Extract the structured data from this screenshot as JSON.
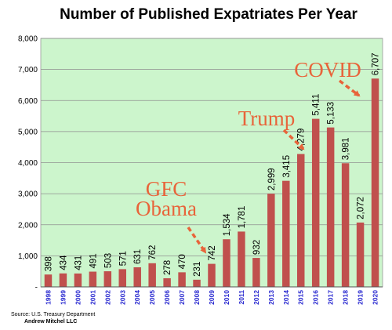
{
  "chart_data": {
    "type": "bar",
    "title": "Number of Published Expatriates Per Year",
    "categories": [
      "1998",
      "1999",
      "2000",
      "2001",
      "2002",
      "2003",
      "2004",
      "2005",
      "2006",
      "2007",
      "2008",
      "2009",
      "2010",
      "2011",
      "2012",
      "2013",
      "2014",
      "2015",
      "2016",
      "2017",
      "2018",
      "2019",
      "2020"
    ],
    "values": [
      398,
      434,
      431,
      491,
      503,
      571,
      631,
      762,
      278,
      470,
      231,
      742,
      1534,
      1781,
      932,
      2999,
      3415,
      4279,
      5411,
      5133,
      3981,
      2072,
      6707
    ],
    "value_labels": [
      "398",
      "434",
      "431",
      "491",
      "503",
      "571",
      "631",
      "762",
      "278",
      "470",
      "231",
      "742",
      "1,534",
      "1,781",
      "932",
      "2,999",
      "3,415",
      "4,279",
      "5,411",
      "5,133",
      "3,981",
      "2,072",
      "6,707"
    ],
    "yticks": [
      "-",
      "1,000",
      "2,000",
      "3,000",
      "4,000",
      "5,000",
      "6,000",
      "7,000",
      "8,000"
    ],
    "ylim": [
      0,
      8000
    ],
    "grid": true,
    "colors": {
      "bar": "#c0504d",
      "plot_bg": "#ccf5cc",
      "annotation": "#e8643a"
    },
    "annotations": [
      {
        "lines": [
          "GFC",
          "Obama"
        ],
        "points_to": "2008"
      },
      {
        "lines": [
          "Trump"
        ],
        "points_to": "2014"
      },
      {
        "lines": [
          "COVID"
        ],
        "points_to": "2020"
      }
    ]
  },
  "footer": {
    "source": "Source: U.S. Treasury Department",
    "author": "Andrew Mitchel LLC"
  }
}
